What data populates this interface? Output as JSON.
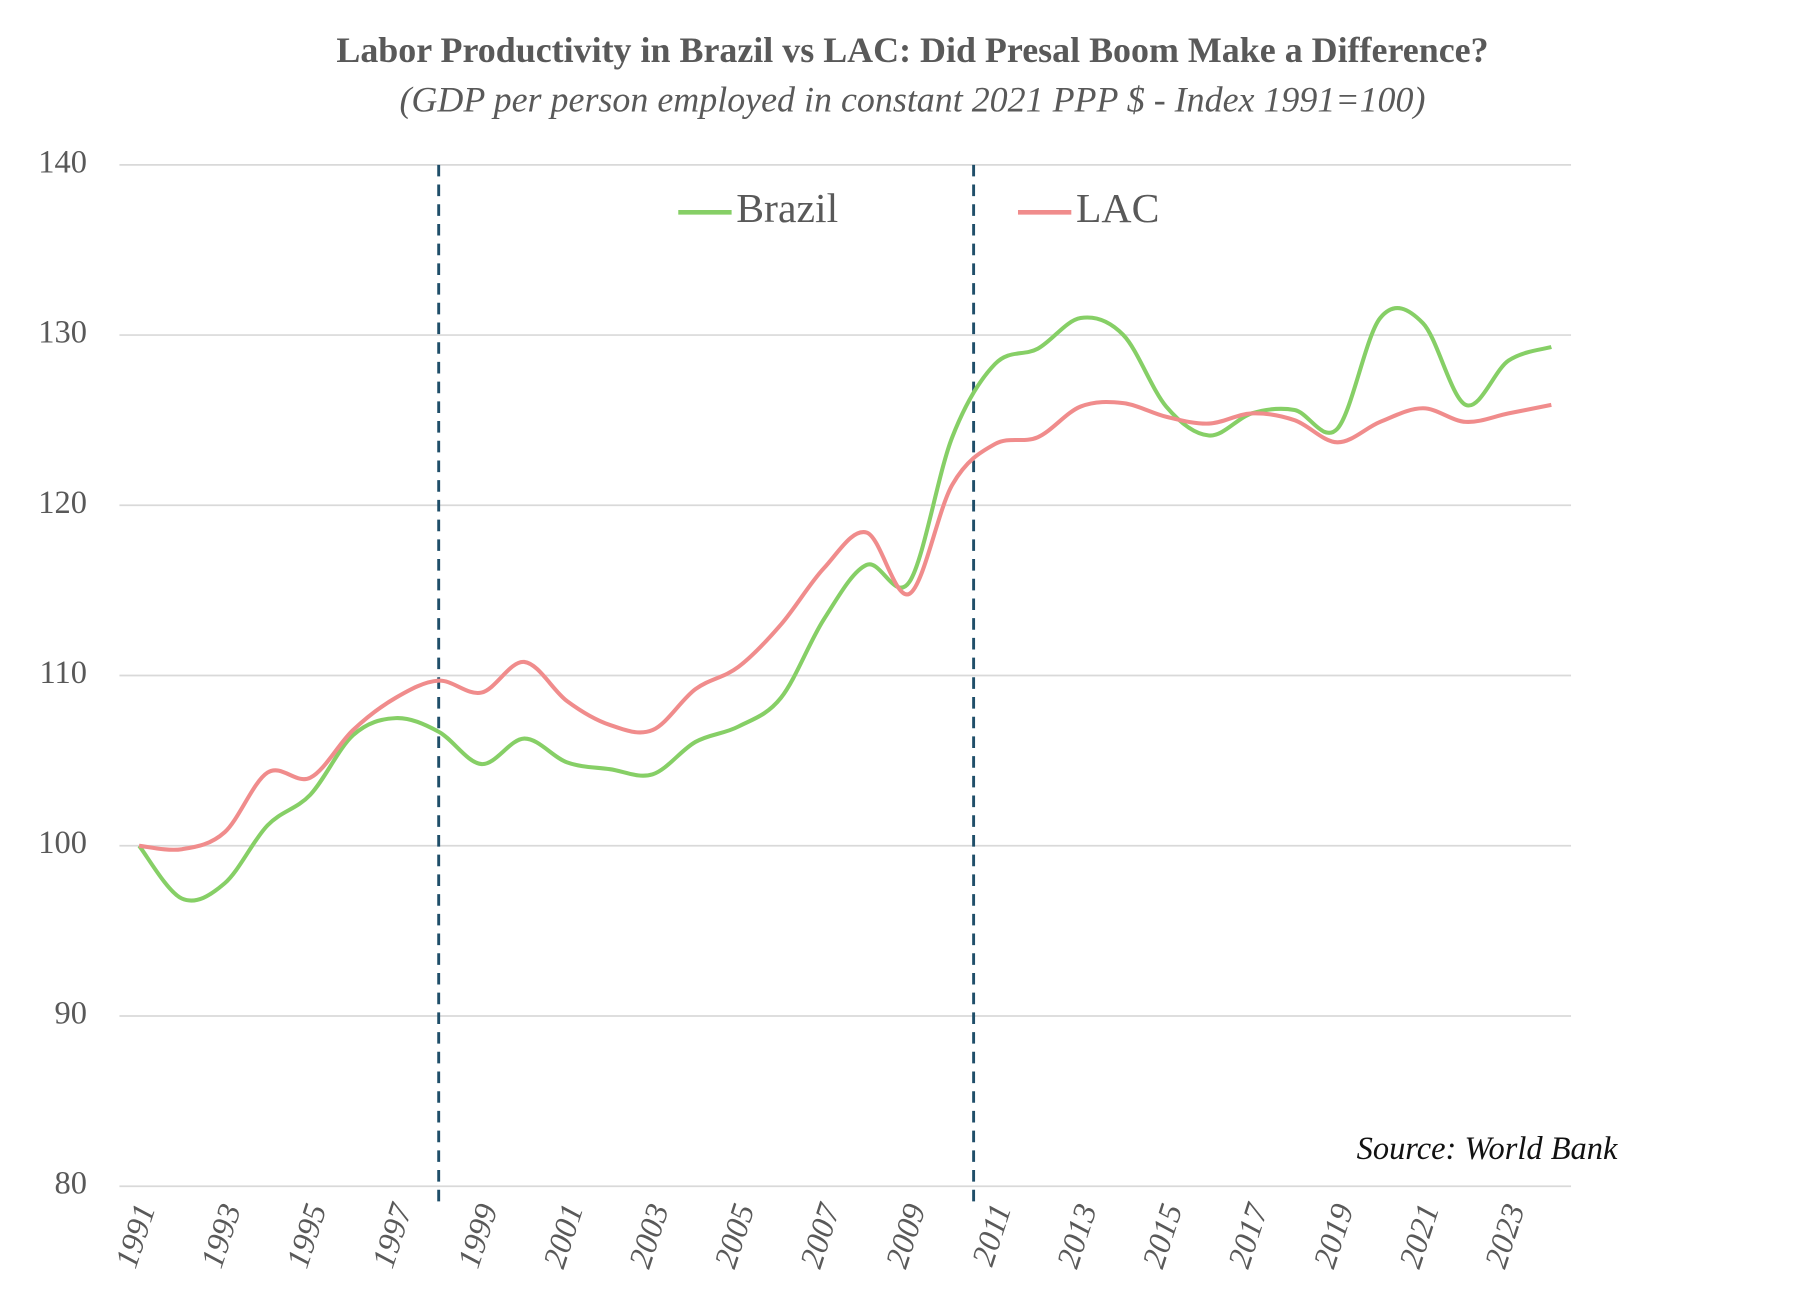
{
  "chart_data": {
    "type": "line",
    "title": "Labor Productivity in Brazil vs LAC: Did Presal Boom Make a Difference?",
    "subtitle": "(GDP per person employed in constant 2021 PPP $ - Index 1991=100)",
    "annotation": "Source: World Bank",
    "x": [
      1991,
      1992,
      1993,
      1994,
      1995,
      1996,
      1997,
      1998,
      1999,
      2000,
      2001,
      2002,
      2003,
      2004,
      2005,
      2006,
      2007,
      2008,
      2009,
      2010,
      2011,
      2012,
      2013,
      2014,
      2015,
      2016,
      2017,
      2018,
      2019,
      2020,
      2021,
      2022,
      2023,
      2024
    ],
    "series": [
      {
        "name": "Brazil",
        "color": "#86cf66",
        "values": [
          100,
          96.9,
          97.8,
          101.2,
          103,
          106.5,
          107.5,
          106.7,
          104.8,
          106.3,
          104.9,
          104.5,
          104.2,
          106.1,
          107,
          108.7,
          113.3,
          116.5,
          115.5,
          124,
          128.3,
          129.2,
          131,
          130,
          125.8,
          124.1,
          125.4,
          125.6,
          124.5,
          131,
          130.7,
          125.9,
          128.5,
          129.3
        ]
      },
      {
        "name": "LAC",
        "color": "#f08c8c",
        "values": [
          100,
          99.8,
          100.8,
          104.3,
          104,
          106.8,
          108.7,
          109.7,
          109,
          110.8,
          108.5,
          107.1,
          106.8,
          109.2,
          110.5,
          113,
          116.3,
          118.4,
          114.8,
          121.2,
          123.6,
          124,
          125.8,
          126,
          125.2,
          124.8,
          125.4,
          125,
          123.7,
          124.9,
          125.7,
          124.9,
          125.4,
          125.9
        ]
      }
    ],
    "vlines": [
      1998,
      2010.5
    ],
    "vline_color": "#1f4e69",
    "xlim": [
      1991,
      2024
    ],
    "xticks": [
      1991,
      1993,
      1995,
      1997,
      1999,
      2001,
      2003,
      2005,
      2007,
      2009,
      2011,
      2013,
      2015,
      2017,
      2019,
      2021,
      2023
    ],
    "ylim": [
      80,
      140
    ],
    "yticks": [
      80,
      90,
      100,
      110,
      120,
      130,
      140
    ],
    "grid": true,
    "legend": "top"
  }
}
